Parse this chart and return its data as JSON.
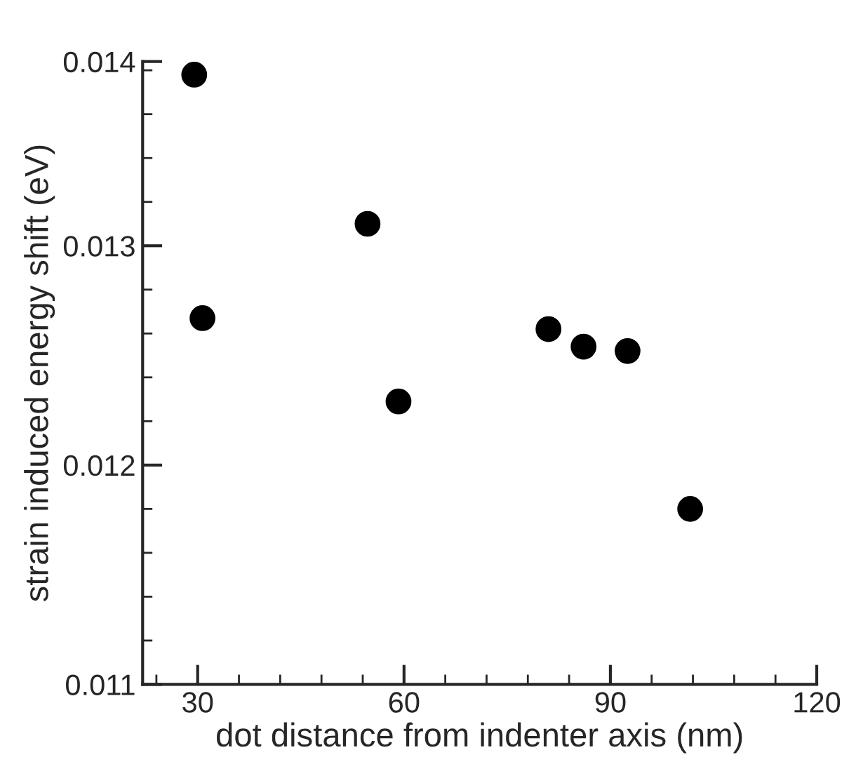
{
  "chart_data": {
    "type": "scatter",
    "xlabel": "dot distance from indenter axis (nm)",
    "ylabel": "strain induced energy shift (eV)",
    "x": [
      29.5,
      30.7,
      54.7,
      59.2,
      81.0,
      86.1,
      92.5,
      101.6
    ],
    "values": [
      0.01378,
      0.01267,
      0.0131,
      0.01229,
      0.01262,
      0.01254,
      0.01252,
      0.0118
    ],
    "color": "#000000",
    "marker": "circle",
    "xlim": [
      22,
      120
    ],
    "xticks": [
      30,
      60,
      90,
      120
    ],
    "ylim": [
      0.011,
      0.01384
    ],
    "yticks": [
      0.011,
      0.012,
      0.013,
      {
        "value": 0.01384,
        "label": "0.014"
      }
    ],
    "grid": false,
    "legend": false
  }
}
